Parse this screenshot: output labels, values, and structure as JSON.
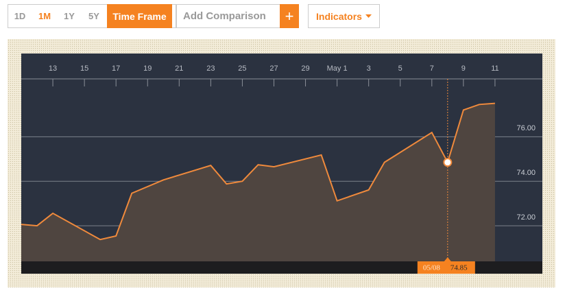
{
  "toolbar": {
    "ranges": [
      "1D",
      "1M",
      "1Y",
      "5Y"
    ],
    "active": "1M",
    "time_frame": "Time Frame",
    "comparison_placeholder": "Add Comparison",
    "add": "+",
    "indicators": "Indicators"
  },
  "chart_data": {
    "type": "area",
    "x": [
      11,
      12,
      13,
      16,
      17,
      18,
      20,
      23,
      24,
      25,
      26,
      27,
      30,
      31,
      33,
      34,
      37,
      38,
      39,
      40,
      41
    ],
    "values": [
      72.06,
      72.0,
      72.56,
      71.38,
      71.54,
      73.46,
      74.06,
      74.71,
      73.88,
      74.0,
      74.74,
      74.65,
      75.18,
      73.12,
      73.61,
      74.85,
      76.19,
      74.85,
      77.2,
      77.45,
      77.5
    ],
    "color": "#f08a3c",
    "fill": "#4f4540",
    "xlim": [
      11,
      44
    ],
    "xticks": [
      13,
      15,
      17,
      19,
      21,
      23,
      25,
      27,
      29,
      {
        "value": 31,
        "label": "May 1"
      },
      {
        "value": 33,
        "label": "3"
      },
      {
        "value": 35,
        "label": "5"
      },
      {
        "value": 37,
        "label": "7"
      },
      {
        "value": 39,
        "label": "9"
      },
      {
        "value": 41,
        "label": "11"
      }
    ],
    "ylim": [
      70.4,
      78.6
    ],
    "yticks": [
      {
        "value": 72,
        "label": "72.00"
      },
      {
        "value": 74,
        "label": "74.00"
      },
      {
        "value": 76,
        "label": "76.00"
      }
    ],
    "grid": true,
    "crosshair": {
      "x": 38,
      "label": "05/08",
      "value": 74.85
    }
  }
}
